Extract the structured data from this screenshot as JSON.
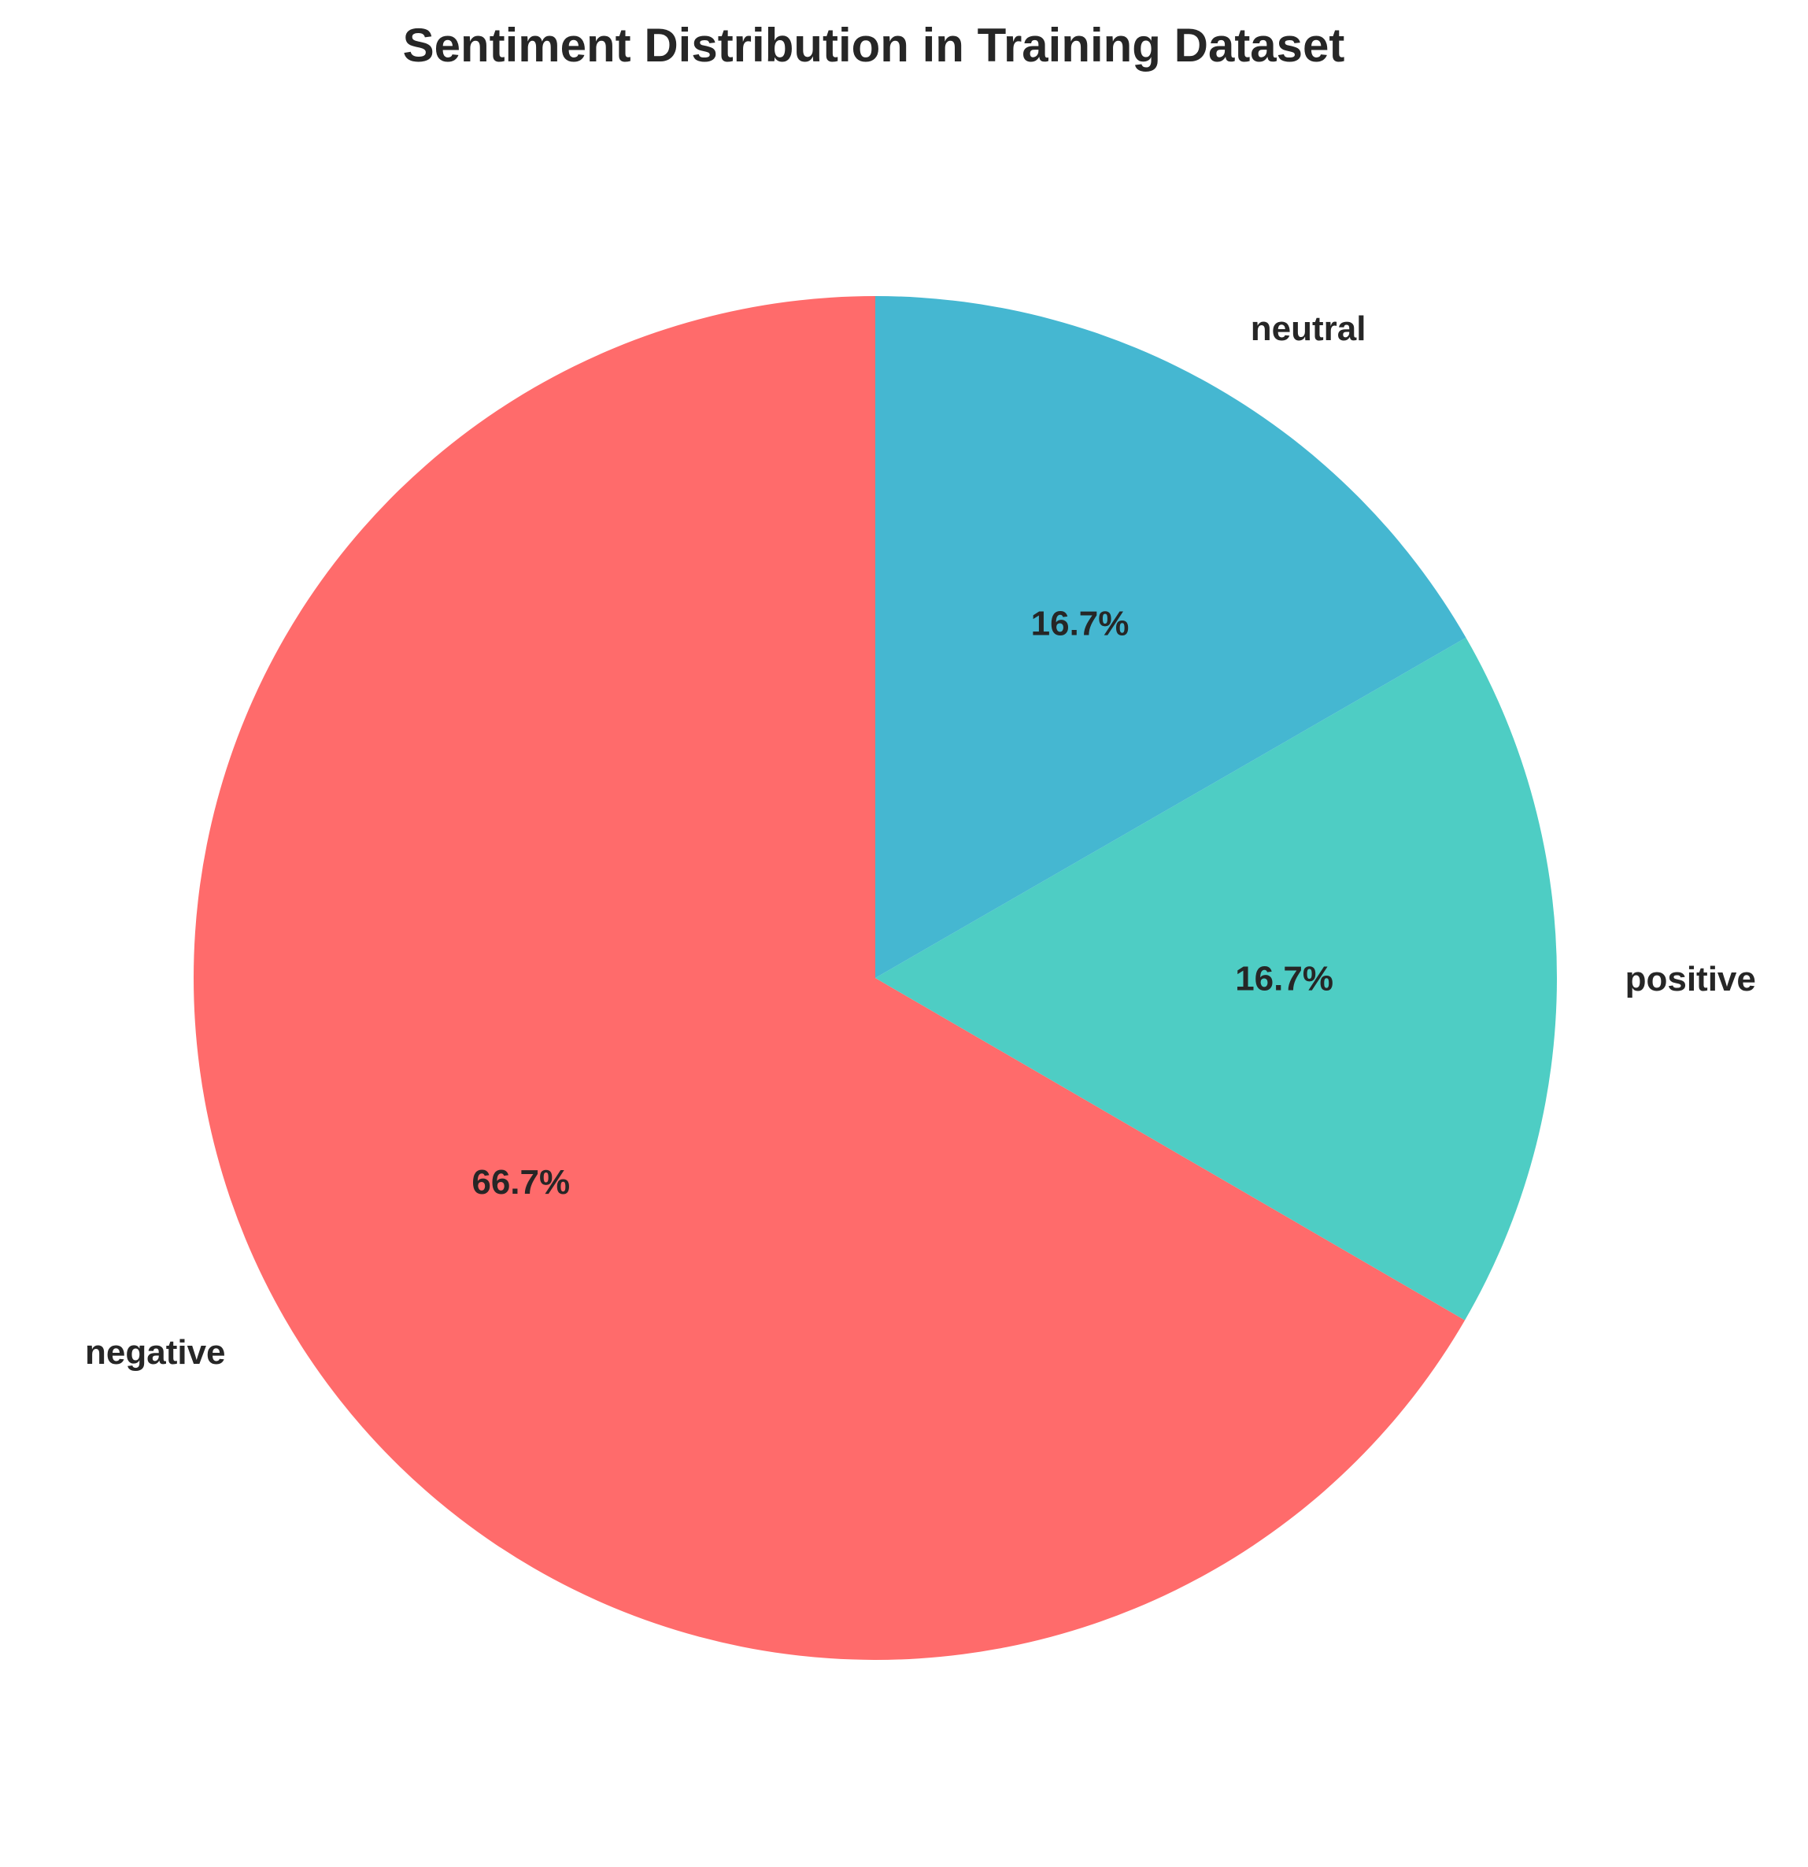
{
  "chart_data": {
    "type": "pie",
    "title": "Sentiment Distribution in Training Dataset",
    "categories": [
      "negative",
      "positive",
      "neutral"
    ],
    "values": [
      66.7,
      16.7,
      16.7
    ],
    "percent_labels": [
      "66.7%",
      "16.7%",
      "16.7%"
    ],
    "colors": [
      "#FF6B6B",
      "#4ECDC4",
      "#45B7D1"
    ],
    "start_angle_deg": 90,
    "direction": "counterclockwise",
    "legend": "none"
  }
}
